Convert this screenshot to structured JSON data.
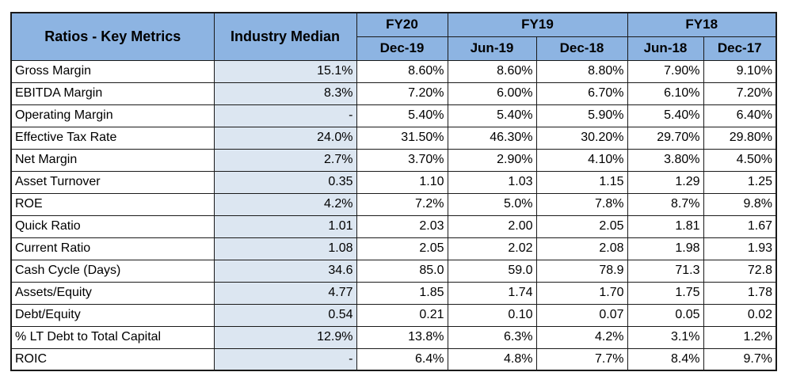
{
  "header": {
    "metrics_title": "Ratios - Key Metrics",
    "median_title": "Industry Median",
    "fiscal_years": [
      "FY20",
      "FY19",
      "FY18"
    ],
    "periods": [
      "Dec-19",
      "Jun-19",
      "Dec-18",
      "Jun-18",
      "Dec-17"
    ]
  },
  "rows": [
    {
      "label": "Gross Margin",
      "median": "15.1%",
      "values": [
        "8.60%",
        "8.60%",
        "8.80%",
        "7.90%",
        "9.10%"
      ]
    },
    {
      "label": "EBITDA Margin",
      "median": "8.3%",
      "values": [
        "7.20%",
        "6.00%",
        "6.70%",
        "6.10%",
        "7.20%"
      ]
    },
    {
      "label": "Operating Margin",
      "median": "-",
      "values": [
        "5.40%",
        "5.40%",
        "5.90%",
        "5.40%",
        "6.40%"
      ]
    },
    {
      "label": "Effective Tax Rate",
      "median": "24.0%",
      "values": [
        "31.50%",
        "46.30%",
        "30.20%",
        "29.70%",
        "29.80%"
      ]
    },
    {
      "label": "Net Margin",
      "median": "2.7%",
      "values": [
        "3.70%",
        "2.90%",
        "4.10%",
        "3.80%",
        "4.50%"
      ]
    },
    {
      "label": "Asset Turnover",
      "median": "0.35",
      "values": [
        "1.10",
        "1.03",
        "1.15",
        "1.29",
        "1.25"
      ]
    },
    {
      "label": "ROE",
      "median": "4.2%",
      "values": [
        "7.2%",
        "5.0%",
        "7.8%",
        "8.7%",
        "9.8%"
      ]
    },
    {
      "label": "Quick Ratio",
      "median": "1.01",
      "values": [
        "2.03",
        "2.00",
        "2.05",
        "1.81",
        "1.67"
      ]
    },
    {
      "label": "Current Ratio",
      "median": "1.08",
      "values": [
        "2.05",
        "2.02",
        "2.08",
        "1.98",
        "1.93"
      ]
    },
    {
      "label": "Cash Cycle (Days)",
      "median": "34.6",
      "values": [
        "85.0",
        "59.0",
        "78.9",
        "71.3",
        "72.8"
      ]
    },
    {
      "label": "Assets/Equity",
      "median": "4.77",
      "values": [
        "1.85",
        "1.74",
        "1.70",
        "1.75",
        "1.78"
      ]
    },
    {
      "label": "Debt/Equity",
      "median": "0.54",
      "values": [
        "0.21",
        "0.10",
        "0.07",
        "0.05",
        "0.02"
      ]
    },
    {
      "label": "% LT Debt to Total Capital",
      "median": "12.9%",
      "values": [
        "13.8%",
        "6.3%",
        "4.2%",
        "3.1%",
        "1.2%"
      ]
    },
    {
      "label": "ROIC",
      "median": "-",
      "values": [
        "6.4%",
        "4.8%",
        "7.7%",
        "8.4%",
        "9.7%"
      ]
    }
  ],
  "colors": {
    "header_bg": "#8db4e2",
    "median_bg": "#dce6f1",
    "border": "#1a1a1a"
  }
}
